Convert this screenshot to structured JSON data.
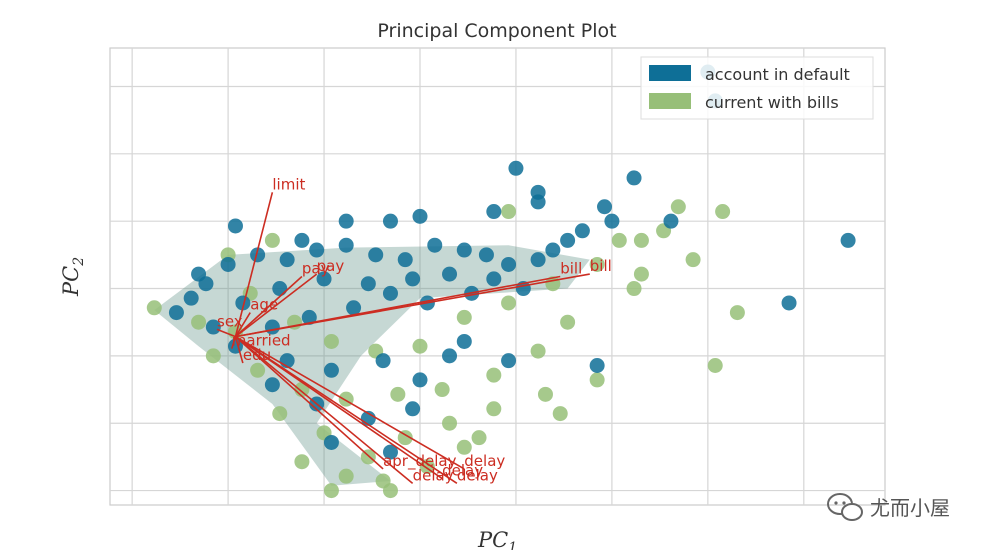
{
  "chart_data": {
    "type": "scatter",
    "title": "Principal Component Plot",
    "xlabel": "PC",
    "xlabel_sub": "1",
    "ylabel": "PC",
    "ylabel_sub": "2",
    "grid": true,
    "legend_position": "top-right",
    "x_ticks_shown": false,
    "y_ticks_shown": false,
    "series": [
      {
        "name": "account in default",
        "color": "#0e6f97",
        "points": [
          [
            -2.3,
            0.5
          ],
          [
            -2.1,
            0.8
          ],
          [
            -1.9,
            1.1
          ],
          [
            -1.6,
            1.5
          ],
          [
            -1.2,
            1.7
          ],
          [
            -0.8,
            1.6
          ],
          [
            -0.4,
            1.8
          ],
          [
            0.0,
            1.9
          ],
          [
            0.4,
            1.7
          ],
          [
            0.8,
            1.6
          ],
          [
            1.2,
            1.9
          ],
          [
            1.6,
            1.8
          ],
          [
            1.9,
            1.7
          ],
          [
            2.2,
            1.5
          ],
          [
            -1.4,
            0.7
          ],
          [
            -0.9,
            1.0
          ],
          [
            -0.3,
            1.2
          ],
          [
            0.3,
            1.1
          ],
          [
            0.9,
            1.2
          ],
          [
            1.4,
            1.3
          ],
          [
            2.0,
            1.2
          ],
          [
            -1.0,
            0.2
          ],
          [
            -0.5,
            0.4
          ],
          [
            0.1,
            0.6
          ],
          [
            0.6,
            0.9
          ],
          [
            1.1,
            0.7
          ],
          [
            1.7,
            0.9
          ],
          [
            2.4,
            1.0
          ],
          [
            -1.5,
            -0.2
          ],
          [
            -0.8,
            -0.5
          ],
          [
            -0.2,
            -0.7
          ],
          [
            0.5,
            -0.5
          ],
          [
            1.0,
            -0.9
          ],
          [
            1.4,
            -0.4
          ],
          [
            -1.0,
            -1.0
          ],
          [
            -0.4,
            -1.4
          ],
          [
            0.3,
            -1.7
          ],
          [
            0.9,
            -1.5
          ],
          [
            -0.2,
            -2.2
          ],
          [
            0.6,
            -2.4
          ],
          [
            -1.8,
            0.2
          ],
          [
            -2.0,
            1.3
          ],
          [
            2.6,
            1.6
          ],
          [
            2.8,
            1.8
          ],
          [
            3.0,
            2.0
          ],
          [
            4.9,
            5.5
          ],
          [
            5.0,
            4.9
          ],
          [
            0.6,
            2.4
          ],
          [
            2.0,
            2.6
          ],
          [
            -1.5,
            2.3
          ],
          [
            0.0,
            2.4
          ],
          [
            3.2,
            2.2
          ],
          [
            3.6,
            2.4
          ],
          [
            3.5,
            2.7
          ],
          [
            4.4,
            2.4
          ],
          [
            6.8,
            2.0
          ],
          [
            6.0,
            0.7
          ],
          [
            3.4,
            -0.6
          ],
          [
            2.2,
            -0.5
          ],
          [
            1.6,
            -0.1
          ],
          [
            2.3,
            3.5
          ],
          [
            1.0,
            2.5
          ],
          [
            -0.6,
            2.0
          ],
          [
            2.6,
            2.8
          ],
          [
            3.9,
            3.3
          ],
          [
            2.6,
            3.0
          ]
        ]
      },
      {
        "name": "current with bills",
        "color": "#97bf78",
        "points": [
          [
            -2.6,
            0.6
          ],
          [
            -2.0,
            0.3
          ],
          [
            -1.5,
            0.1
          ],
          [
            -1.3,
            0.9
          ],
          [
            -0.7,
            0.3
          ],
          [
            -0.2,
            -0.1
          ],
          [
            0.4,
            -0.3
          ],
          [
            1.0,
            -0.2
          ],
          [
            1.6,
            0.4
          ],
          [
            2.2,
            0.7
          ],
          [
            2.8,
            1.1
          ],
          [
            3.4,
            1.5
          ],
          [
            4.0,
            2.0
          ],
          [
            4.3,
            2.2
          ],
          [
            -1.2,
            -0.7
          ],
          [
            -0.6,
            -1.1
          ],
          [
            0.0,
            -1.3
          ],
          [
            0.7,
            -1.2
          ],
          [
            1.3,
            -1.1
          ],
          [
            2.0,
            -0.8
          ],
          [
            2.6,
            -0.3
          ],
          [
            -0.9,
            -1.6
          ],
          [
            -0.3,
            -2.0
          ],
          [
            0.3,
            -2.5
          ],
          [
            0.8,
            -2.1
          ],
          [
            1.4,
            -1.8
          ],
          [
            2.0,
            -1.5
          ],
          [
            -0.6,
            -2.6
          ],
          [
            0.0,
            -2.9
          ],
          [
            0.5,
            -3.0
          ],
          [
            1.1,
            -2.7
          ],
          [
            -1.6,
            1.7
          ],
          [
            -1.0,
            2.0
          ],
          [
            4.0,
            1.3
          ],
          [
            3.9,
            1.0
          ],
          [
            3.7,
            2.0
          ],
          [
            5.1,
            2.6
          ],
          [
            5.0,
            -0.6
          ],
          [
            3.4,
            -0.9
          ],
          [
            2.7,
            -1.2
          ],
          [
            2.9,
            -1.6
          ],
          [
            1.6,
            -2.3
          ],
          [
            0.6,
            -3.2
          ],
          [
            -0.2,
            -3.2
          ],
          [
            2.2,
            2.6
          ],
          [
            4.5,
            2.7
          ],
          [
            4.7,
            1.6
          ],
          [
            5.3,
            0.5
          ],
          [
            1.8,
            -2.1
          ],
          [
            3.0,
            0.3
          ],
          [
            -1.8,
            -0.4
          ]
        ]
      }
    ],
    "feature_vectors": {
      "color": "#cc2d22",
      "origin": [
        -1.5,
        0.0
      ],
      "labels": [
        {
          "text": "limit",
          "end": [
            -1.0,
            3.0
          ]
        },
        {
          "text": "age",
          "end": [
            -1.3,
            0.5
          ]
        },
        {
          "text": "sex",
          "end": [
            -1.75,
            0.15
          ]
        },
        {
          "text": "married",
          "end": [
            -1.55,
            -0.25
          ]
        },
        {
          "text": "edu",
          "end": [
            -1.4,
            -0.55
          ]
        },
        {
          "text": "bill",
          "end": [
            3.3,
            1.3
          ]
        },
        {
          "text": "bill",
          "end": [
            2.9,
            1.25
          ]
        },
        {
          "text": "pay",
          "end": [
            -0.6,
            1.25
          ]
        },
        {
          "text": "pay",
          "end": [
            -0.4,
            1.3
          ]
        },
        {
          "text": "apr_delay",
          "end": [
            0.5,
            -2.75
          ]
        },
        {
          "text": "delay",
          "end": [
            1.6,
            -2.75
          ]
        },
        {
          "text": "delay",
          "end": [
            1.3,
            -2.95
          ]
        },
        {
          "text": "delay",
          "end": [
            0.9,
            -3.05
          ]
        },
        {
          "text": "delay",
          "end": [
            1.5,
            -3.05
          ]
        }
      ]
    }
  },
  "watermark": {
    "icon": "wechat-icon",
    "text": "尤而小屋"
  }
}
